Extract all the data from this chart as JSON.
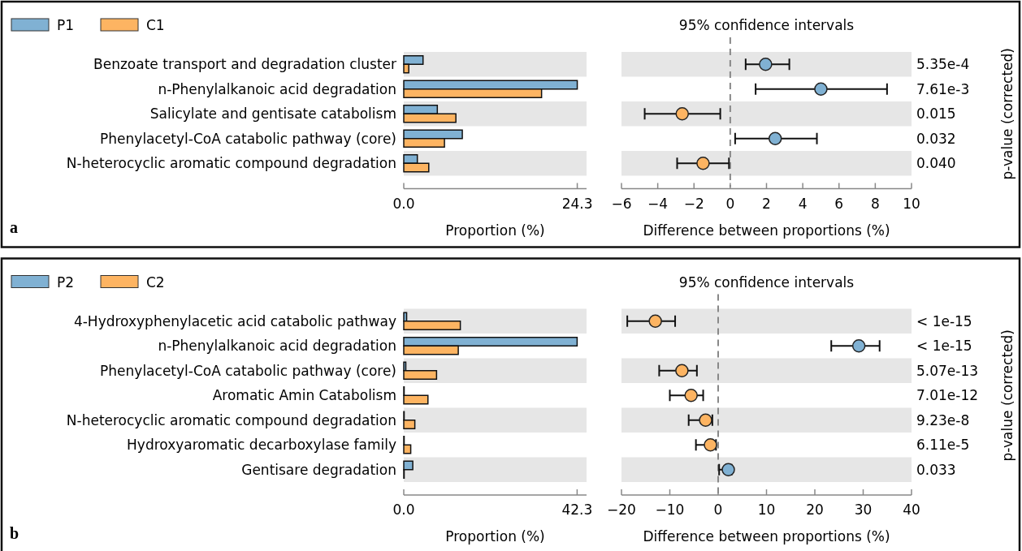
{
  "chart_data": [
    {
      "type": "bar",
      "orientation": "horizontal",
      "categories": [
        "Benzoate transport and degradation cluster",
        "n-Phenylalkanoic acid degradation",
        "Salicylate and gentisate catabolism",
        "Phenylacetyl-CoA catabolic pathway (core)",
        "N-heterocyclic aromatic compound degradation"
      ],
      "series": [
        {
          "name": "P1",
          "color": "#80b1d3",
          "values": [
            2.7,
            24.3,
            4.7,
            8.2,
            1.9
          ]
        },
        {
          "name": "C1",
          "color": "#fdb462",
          "values": [
            0.7,
            19.3,
            7.3,
            5.7,
            3.5
          ]
        }
      ],
      "xlim": [
        0,
        25.6
      ],
      "xticks": [
        {
          "value": 0,
          "label": "0.0"
        },
        24.3
      ],
      "xlabel": "Proportion (%)",
      "legend": "top left",
      "grid": false,
      "annotations": [
        "a"
      ]
    },
    {
      "type": "scatter",
      "orientation": "horizontal",
      "title": "95% confidence intervals",
      "values": [
        1.95,
        5.0,
        -2.65,
        2.48,
        -1.5
      ],
      "errors": [
        [
          0.85,
          3.26
        ],
        [
          1.4,
          8.65
        ],
        [
          -4.72,
          -0.55
        ],
        [
          0.27,
          4.78
        ],
        [
          -2.93,
          -0.07
        ]
      ],
      "colors": [
        "#80b1d3",
        "#80b1d3",
        "#fdb462",
        "#80b1d3",
        "#fdb462"
      ],
      "xlim": [
        -6,
        10
      ],
      "xticks": [
        -6,
        -4,
        -2,
        0,
        2,
        4,
        6,
        8,
        10
      ],
      "xlabel": "Difference between proportions (%)",
      "y2label": "p-value (corrected)",
      "ref_lines": [
        {
          "axis": "x",
          "value": 0,
          "color": "#888888",
          "line_style": "dashed"
        }
      ],
      "annotations": [
        "5.35e-4",
        "7.61e-3",
        "0.015",
        "0.032",
        "0.040"
      ]
    },
    {
      "type": "bar",
      "orientation": "horizontal",
      "categories": [
        "4-Hydroxyphenylacetic acid catabolic pathway",
        "n-Phenylalkanoic acid degradation",
        "Phenylacetyl-CoA catabolic pathway (core)",
        "Aromatic Amin Catabolism",
        "N-heterocyclic aromatic compound degradation",
        "Hydroxyaromatic decarboxylase family",
        "Gentisare degradation"
      ],
      "series": [
        {
          "name": "P2",
          "color": "#80b1d3",
          "values": [
            0.7,
            42.3,
            0.5,
            0.1,
            0.1,
            0.1,
            2.2
          ]
        },
        {
          "name": "C2",
          "color": "#fdb462",
          "values": [
            13.8,
            13.3,
            8.0,
            5.9,
            2.7,
            1.7,
            0.1
          ]
        }
      ],
      "xlim": [
        0,
        44.6
      ],
      "xticks": [
        {
          "value": 0,
          "label": "0.0"
        },
        42.3
      ],
      "xlabel": "Proportion (%)",
      "legend": "top left",
      "grid": false,
      "annotations": [
        "b"
      ]
    },
    {
      "type": "scatter",
      "orientation": "horizontal",
      "title": "95% confidence intervals",
      "values": [
        -13.0,
        29.1,
        -7.5,
        -5.6,
        -2.6,
        -1.6,
        2.1
      ],
      "errors": [
        [
          -18.8,
          -8.9
        ],
        [
          23.4,
          33.4
        ],
        [
          -12.2,
          -4.4
        ],
        [
          -10.0,
          -3.1
        ],
        [
          -6.1,
          -1.2
        ],
        [
          -4.6,
          -0.45
        ],
        [
          0.2,
          2.8
        ]
      ],
      "colors": [
        "#fdb462",
        "#80b1d3",
        "#fdb462",
        "#fdb462",
        "#fdb462",
        "#fdb462",
        "#80b1d3"
      ],
      "xlim": [
        -20,
        40
      ],
      "xticks": [
        -20,
        -10,
        0,
        10,
        20,
        30,
        40
      ],
      "xlabel": "Difference between proportions (%)",
      "y2label": "p-value (corrected)",
      "ref_lines": [
        {
          "axis": "x",
          "value": 0,
          "color": "#888888",
          "line_style": "dashed"
        }
      ],
      "annotations": [
        "< 1e-15",
        "< 1e-15",
        "5.07e-13",
        "7.01e-12",
        "9.23e-8",
        "6.11e-5",
        "0.033"
      ]
    }
  ]
}
